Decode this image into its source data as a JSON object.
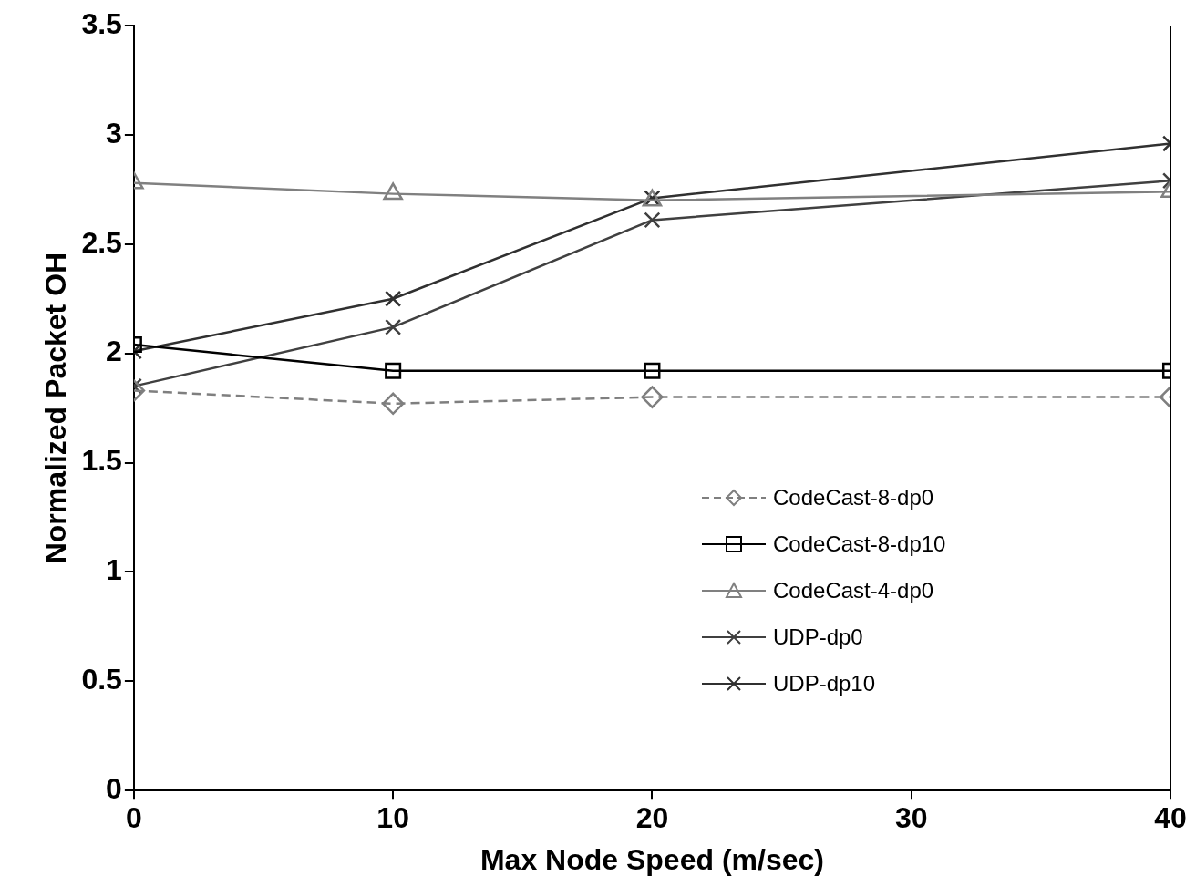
{
  "chart_data": {
    "type": "line",
    "xlabel": "Max Node Speed (m/sec)",
    "ylabel": "Normalized Packet OH",
    "x": [
      0,
      10,
      20,
      40
    ],
    "xlim": [
      0,
      40
    ],
    "xticks": [
      0,
      10,
      20,
      30,
      40
    ],
    "ylim": [
      0,
      3.5
    ],
    "yticks": [
      0,
      0.5,
      1,
      1.5,
      2,
      2.5,
      3,
      3.5
    ],
    "grid": false,
    "legend": "right",
    "series": [
      {
        "name": "CodeCast-8-dp0",
        "color": "#7f7f7f",
        "marker": "diamond",
        "line_style": "dashed",
        "values": [
          1.83,
          1.77,
          1.8,
          1.8
        ]
      },
      {
        "name": "CodeCast-8-dp10",
        "color": "#000000",
        "marker": "square",
        "line_style": "solid",
        "values": [
          2.04,
          1.92,
          1.92,
          1.92
        ]
      },
      {
        "name": "CodeCast-4-dp0",
        "color": "#808080",
        "marker": "triangle",
        "line_style": "solid",
        "values": [
          2.78,
          2.73,
          2.7,
          2.74
        ]
      },
      {
        "name": "UDP-dp0",
        "color": "#404040",
        "marker": "cross",
        "line_style": "solid",
        "values": [
          1.85,
          2.12,
          2.61,
          2.79
        ]
      },
      {
        "name": "UDP-dp10",
        "color": "#303030",
        "marker": "cross",
        "line_style": "solid",
        "values": [
          2.01,
          2.25,
          2.71,
          2.96
        ]
      }
    ]
  }
}
